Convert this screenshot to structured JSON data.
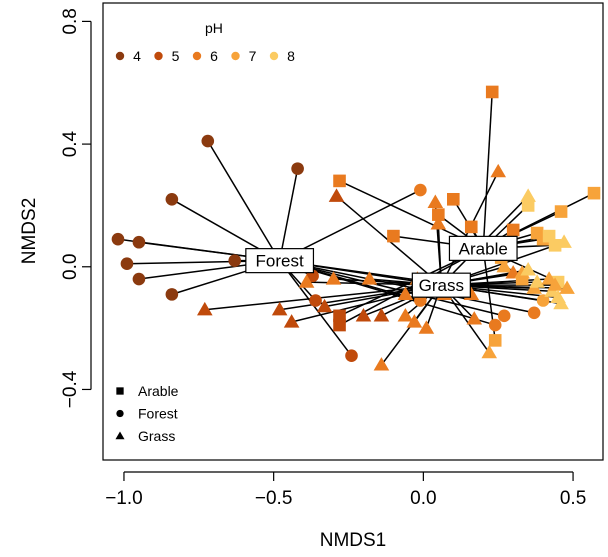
{
  "chart_data": {
    "type": "scatter",
    "xlabel": "NMDS1",
    "ylabel": "NMDS2",
    "xlim": [
      -1.07,
      0.6
    ],
    "ylim": [
      -0.63,
      0.86
    ],
    "xticks": [
      -1.0,
      -0.5,
      0.0,
      0.5
    ],
    "xtick_labels": [
      "−1.0",
      "−0.5",
      "0.0",
      "0.5"
    ],
    "yticks": [
      -0.4,
      0.0,
      0.4,
      0.8
    ],
    "ytick_labels": [
      "−0.4",
      "0.0",
      "0.4",
      "0.8"
    ],
    "grid": false,
    "legend_color": {
      "title": "pH",
      "placement": "top-left",
      "entries": [
        {
          "label": "4",
          "color": "#8B3A0F"
        },
        {
          "label": "5",
          "color": "#C04A0B"
        },
        {
          "label": "6",
          "color": "#E97A1F"
        },
        {
          "label": "7",
          "color": "#F7A33A"
        },
        {
          "label": "8",
          "color": "#FBCB62"
        }
      ]
    },
    "legend_shape": {
      "placement": "bottom-left",
      "entries": [
        {
          "label": "Arable",
          "shape": "square"
        },
        {
          "label": "Forest",
          "shape": "circle"
        },
        {
          "label": "Grass",
          "shape": "triangle"
        }
      ]
    },
    "centroids": [
      {
        "group": "Forest",
        "x": -0.48,
        "y": 0.02
      },
      {
        "group": "Arable",
        "x": 0.2,
        "y": 0.06
      },
      {
        "group": "Grass",
        "x": 0.06,
        "y": -0.06
      }
    ],
    "series": [
      {
        "name": "Forest",
        "shape": "circle",
        "points": [
          {
            "x": -1.02,
            "y": 0.09,
            "ph": 4
          },
          {
            "x": -0.99,
            "y": 0.01,
            "ph": 4
          },
          {
            "x": -0.95,
            "y": 0.08,
            "ph": 4
          },
          {
            "x": -0.95,
            "y": -0.04,
            "ph": 4
          },
          {
            "x": -0.84,
            "y": 0.22,
            "ph": 4
          },
          {
            "x": -0.84,
            "y": -0.09,
            "ph": 4
          },
          {
            "x": -0.72,
            "y": 0.41,
            "ph": 4
          },
          {
            "x": -0.63,
            "y": 0.02,
            "ph": 4
          },
          {
            "x": -0.42,
            "y": 0.32,
            "ph": 4
          },
          {
            "x": -0.37,
            "y": -0.03,
            "ph": 5
          },
          {
            "x": -0.36,
            "y": -0.11,
            "ph": 5
          },
          {
            "x": -0.24,
            "y": -0.29,
            "ph": 5
          },
          {
            "x": -0.01,
            "y": 0.25,
            "ph": 6
          },
          {
            "x": -0.01,
            "y": -0.11,
            "ph": 6
          },
          {
            "x": 0.03,
            "y": -0.05,
            "ph": 6
          },
          {
            "x": 0.24,
            "y": -0.19,
            "ph": 6
          },
          {
            "x": 0.27,
            "y": -0.16,
            "ph": 6
          },
          {
            "x": 0.37,
            "y": -0.15,
            "ph": 6
          },
          {
            "x": 0.4,
            "y": -0.11,
            "ph": 7
          }
        ]
      },
      {
        "name": "Arable",
        "shape": "square",
        "points": [
          {
            "x": 0.23,
            "y": 0.57,
            "ph": 6
          },
          {
            "x": -0.28,
            "y": 0.28,
            "ph": 6
          },
          {
            "x": -0.28,
            "y": -0.16,
            "ph": 5
          },
          {
            "x": -0.28,
            "y": -0.19,
            "ph": 5
          },
          {
            "x": -0.1,
            "y": 0.1,
            "ph": 6
          },
          {
            "x": 0.05,
            "y": 0.17,
            "ph": 6
          },
          {
            "x": 0.1,
            "y": 0.22,
            "ph": 6
          },
          {
            "x": 0.16,
            "y": 0.13,
            "ph": 6
          },
          {
            "x": 0.24,
            "y": -0.24,
            "ph": 7
          },
          {
            "x": 0.28,
            "y": 0.05,
            "ph": 6
          },
          {
            "x": 0.3,
            "y": 0.12,
            "ph": 6
          },
          {
            "x": 0.33,
            "y": -0.04,
            "ph": 7
          },
          {
            "x": 0.35,
            "y": 0.2,
            "ph": 8
          },
          {
            "x": 0.38,
            "y": 0.11,
            "ph": 7
          },
          {
            "x": 0.4,
            "y": 0.09,
            "ph": 7
          },
          {
            "x": 0.42,
            "y": 0.1,
            "ph": 8
          },
          {
            "x": 0.44,
            "y": 0.07,
            "ph": 8
          },
          {
            "x": 0.45,
            "y": -0.05,
            "ph": 8
          },
          {
            "x": 0.46,
            "y": 0.18,
            "ph": 7
          },
          {
            "x": 0.57,
            "y": 0.24,
            "ph": 7
          },
          {
            "x": 0.26,
            "y": 0.03,
            "ph": 7
          }
        ]
      },
      {
        "name": "Grass",
        "shape": "triangle",
        "points": [
          {
            "x": -0.73,
            "y": -0.14,
            "ph": 5
          },
          {
            "x": -0.48,
            "y": -0.14,
            "ph": 5
          },
          {
            "x": -0.44,
            "y": -0.18,
            "ph": 5
          },
          {
            "x": -0.39,
            "y": -0.05,
            "ph": 6
          },
          {
            "x": -0.33,
            "y": -0.13,
            "ph": 5
          },
          {
            "x": -0.3,
            "y": -0.04,
            "ph": 6
          },
          {
            "x": -0.29,
            "y": 0.23,
            "ph": 5
          },
          {
            "x": -0.2,
            "y": -0.16,
            "ph": 5
          },
          {
            "x": -0.18,
            "y": -0.04,
            "ph": 6
          },
          {
            "x": -0.14,
            "y": -0.16,
            "ph": 5
          },
          {
            "x": -0.14,
            "y": -0.32,
            "ph": 6
          },
          {
            "x": -0.06,
            "y": -0.09,
            "ph": 6
          },
          {
            "x": -0.06,
            "y": -0.16,
            "ph": 6
          },
          {
            "x": -0.03,
            "y": -0.18,
            "ph": 6
          },
          {
            "x": -0.02,
            "y": -0.04,
            "ph": 6
          },
          {
            "x": 0.01,
            "y": -0.2,
            "ph": 6
          },
          {
            "x": 0.02,
            "y": -0.05,
            "ph": 6
          },
          {
            "x": 0.04,
            "y": 0.21,
            "ph": 6
          },
          {
            "x": 0.05,
            "y": 0.14,
            "ph": 6
          },
          {
            "x": 0.07,
            "y": -0.09,
            "ph": 6
          },
          {
            "x": 0.16,
            "y": -0.09,
            "ph": 6
          },
          {
            "x": 0.17,
            "y": -0.17,
            "ph": 6
          },
          {
            "x": 0.22,
            "y": -0.28,
            "ph": 7
          },
          {
            "x": 0.25,
            "y": 0.31,
            "ph": 6
          },
          {
            "x": 0.27,
            "y": 0.0,
            "ph": 7
          },
          {
            "x": 0.3,
            "y": -0.02,
            "ph": 6
          },
          {
            "x": 0.33,
            "y": -0.02,
            "ph": 7
          },
          {
            "x": 0.35,
            "y": 0.23,
            "ph": 8
          },
          {
            "x": 0.35,
            "y": -0.01,
            "ph": 8
          },
          {
            "x": 0.37,
            "y": -0.07,
            "ph": 7
          },
          {
            "x": 0.38,
            "y": -0.05,
            "ph": 8
          },
          {
            "x": 0.43,
            "y": -0.08,
            "ph": 8
          },
          {
            "x": 0.44,
            "y": -0.06,
            "ph": 7
          },
          {
            "x": 0.45,
            "y": -0.1,
            "ph": 8
          },
          {
            "x": 0.46,
            "y": -0.12,
            "ph": 8
          },
          {
            "x": 0.47,
            "y": 0.08,
            "ph": 8
          },
          {
            "x": 0.48,
            "y": -0.07,
            "ph": 7
          },
          {
            "x": 0.42,
            "y": -0.04,
            "ph": 7
          }
        ]
      }
    ]
  }
}
